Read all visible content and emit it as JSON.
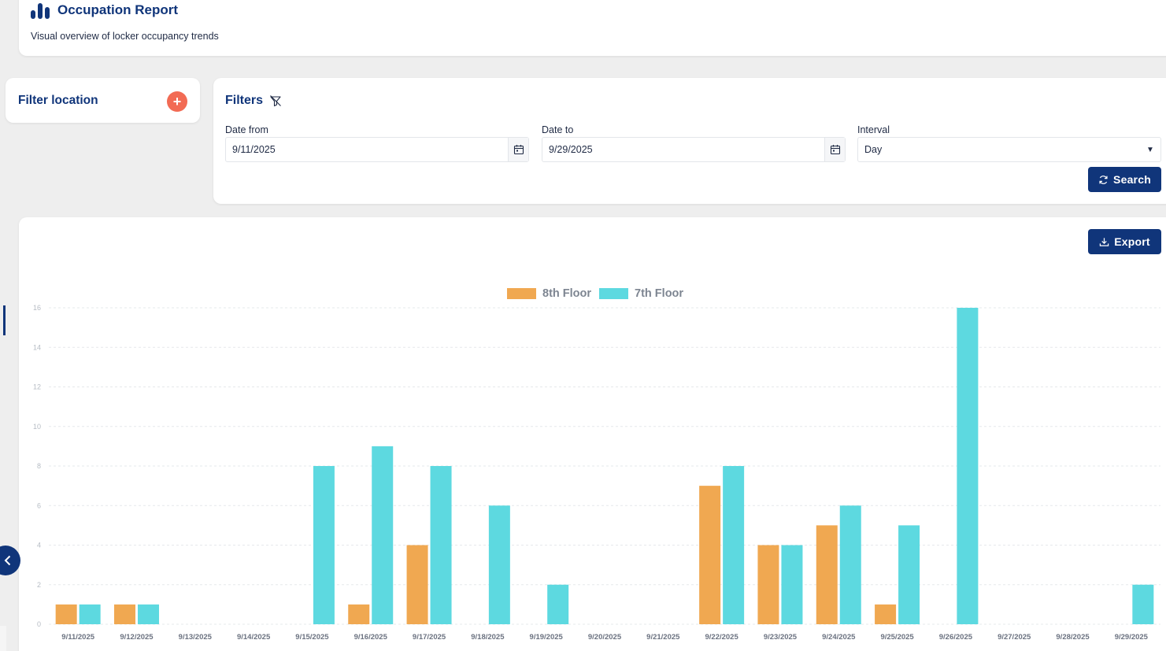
{
  "header": {
    "title": "Occupation Report",
    "subtitle": "Visual overview of locker occupancy trends"
  },
  "location_filter": {
    "title": "Filter location",
    "add_label": "+"
  },
  "filters": {
    "title": "Filters",
    "date_from": {
      "label": "Date from",
      "value": "9/11/2025"
    },
    "date_to": {
      "label": "Date to",
      "value": "9/29/2025"
    },
    "interval": {
      "label": "Interval",
      "value": "Day"
    },
    "search_label": "Search"
  },
  "chart_section": {
    "export_label": "Export"
  },
  "colors": {
    "primary": "#10357a",
    "accent": "#f26b54",
    "series_8th": "#f0a851",
    "series_7th": "#5dd9e0"
  },
  "chart_data": {
    "type": "bar",
    "title": "",
    "xlabel": "",
    "ylabel": "",
    "ylim": [
      0,
      16
    ],
    "yticks": [
      0,
      2,
      4,
      6,
      8,
      10,
      12,
      14,
      16
    ],
    "legend_position": "top-center",
    "grid": true,
    "categories": [
      "9/11/2025",
      "9/12/2025",
      "9/13/2025",
      "9/14/2025",
      "9/15/2025",
      "9/16/2025",
      "9/17/2025",
      "9/18/2025",
      "9/19/2025",
      "9/20/2025",
      "9/21/2025",
      "9/22/2025",
      "9/23/2025",
      "9/24/2025",
      "9/25/2025",
      "9/26/2025",
      "9/27/2025",
      "9/28/2025",
      "9/29/2025"
    ],
    "series": [
      {
        "name": "8th Floor",
        "color": "#f0a851",
        "values": [
          1,
          1,
          0,
          0,
          0,
          1,
          4,
          0,
          0,
          0,
          0,
          7,
          4,
          5,
          1,
          0,
          0,
          0,
          0
        ]
      },
      {
        "name": "7th Floor",
        "color": "#5dd9e0",
        "values": [
          1,
          1,
          0,
          0,
          8,
          9,
          8,
          6,
          2,
          0,
          0,
          8,
          4,
          6,
          5,
          16,
          0,
          0,
          2
        ]
      }
    ]
  }
}
